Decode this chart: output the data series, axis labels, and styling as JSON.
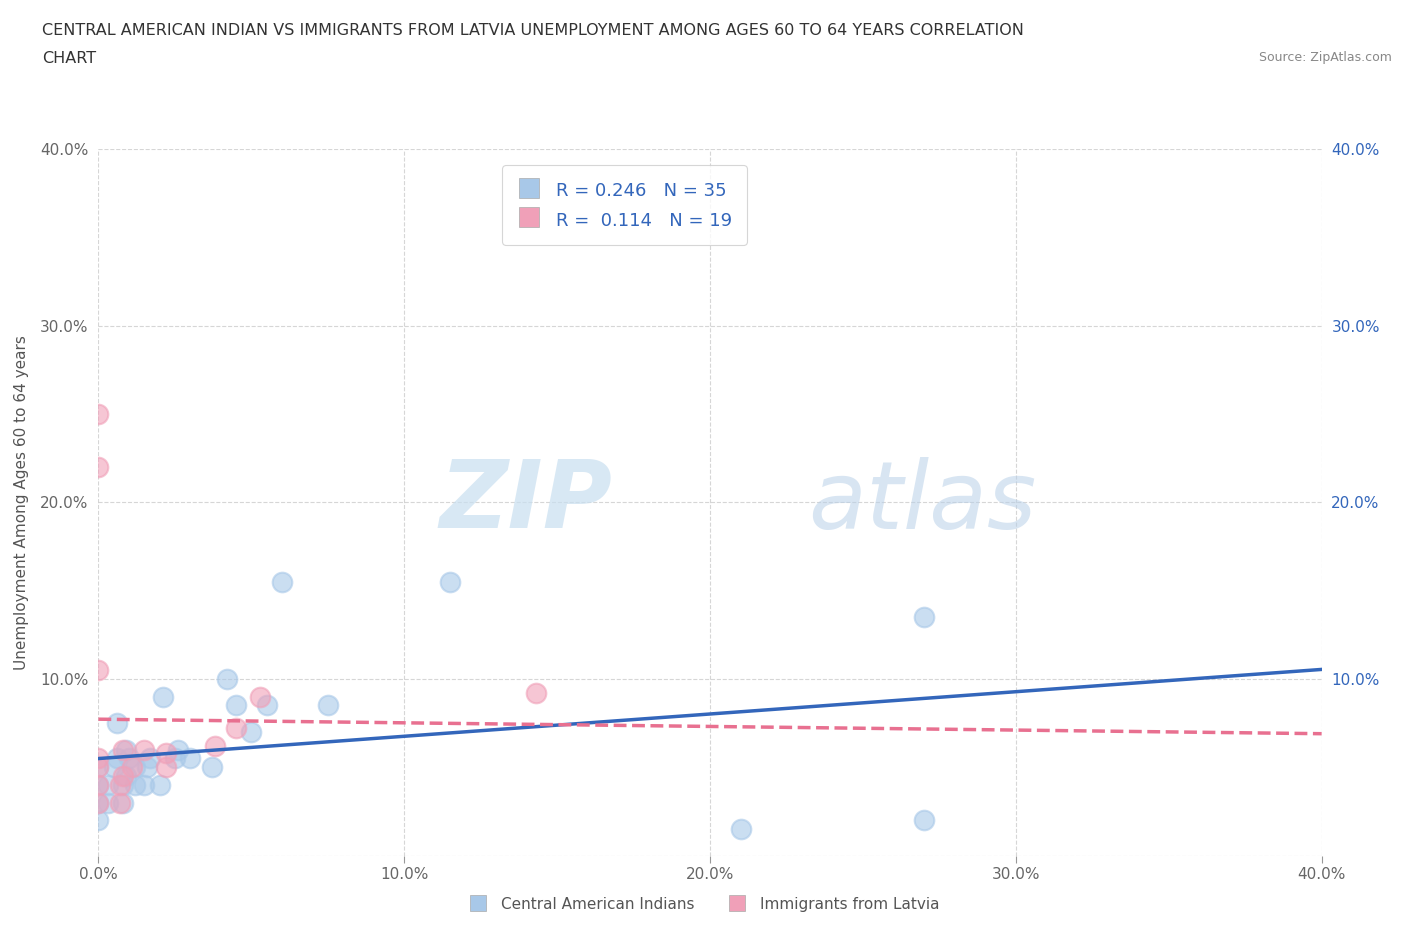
{
  "title_line1": "CENTRAL AMERICAN INDIAN VS IMMIGRANTS FROM LATVIA UNEMPLOYMENT AMONG AGES 60 TO 64 YEARS CORRELATION",
  "title_line2": "CHART",
  "source": "Source: ZipAtlas.com",
  "ylabel": "Unemployment Among Ages 60 to 64 years",
  "xlim": [
    0.0,
    0.4
  ],
  "ylim": [
    0.0,
    0.4
  ],
  "xticks": [
    0.0,
    0.1,
    0.2,
    0.3,
    0.4
  ],
  "yticks": [
    0.0,
    0.1,
    0.2,
    0.3,
    0.4
  ],
  "xticklabels": [
    "0.0%",
    "10.0%",
    "20.0%",
    "30.0%",
    "40.0%"
  ],
  "yticklabels_left": [
    "",
    "10.0%",
    "20.0%",
    "30.0%",
    "40.0%"
  ],
  "yticklabels_right": [
    "",
    "10.0%",
    "20.0%",
    "30.0%",
    "40.0%"
  ],
  "R_blue": 0.246,
  "N_blue": 35,
  "R_pink": 0.114,
  "N_pink": 19,
  "blue_color": "#a8c8e8",
  "pink_color": "#f0a0b8",
  "trend_blue_color": "#3366bb",
  "trend_pink_color": "#e87090",
  "legend_label_blue": "Central American Indians",
  "legend_label_pink": "Immigrants from Latvia",
  "blue_scatter_x": [
    0.0,
    0.0,
    0.0,
    0.0,
    0.003,
    0.003,
    0.005,
    0.006,
    0.006,
    0.008,
    0.008,
    0.009,
    0.009,
    0.01,
    0.012,
    0.012,
    0.015,
    0.016,
    0.017,
    0.02,
    0.021,
    0.025,
    0.026,
    0.03,
    0.037,
    0.042,
    0.045,
    0.05,
    0.055,
    0.06,
    0.075,
    0.115,
    0.21,
    0.27,
    0.27
  ],
  "blue_scatter_y": [
    0.02,
    0.03,
    0.04,
    0.05,
    0.03,
    0.04,
    0.05,
    0.055,
    0.075,
    0.03,
    0.04,
    0.045,
    0.06,
    0.055,
    0.04,
    0.05,
    0.04,
    0.05,
    0.055,
    0.04,
    0.09,
    0.055,
    0.06,
    0.055,
    0.05,
    0.1,
    0.085,
    0.07,
    0.085,
    0.155,
    0.085,
    0.155,
    0.015,
    0.135,
    0.02
  ],
  "pink_scatter_x": [
    0.0,
    0.0,
    0.0,
    0.0,
    0.0,
    0.0,
    0.0,
    0.007,
    0.007,
    0.008,
    0.008,
    0.011,
    0.015,
    0.022,
    0.022,
    0.038,
    0.045,
    0.053,
    0.143
  ],
  "pink_scatter_y": [
    0.03,
    0.04,
    0.05,
    0.055,
    0.105,
    0.22,
    0.25,
    0.03,
    0.04,
    0.045,
    0.06,
    0.05,
    0.06,
    0.05,
    0.058,
    0.062,
    0.072,
    0.09,
    0.092
  ]
}
